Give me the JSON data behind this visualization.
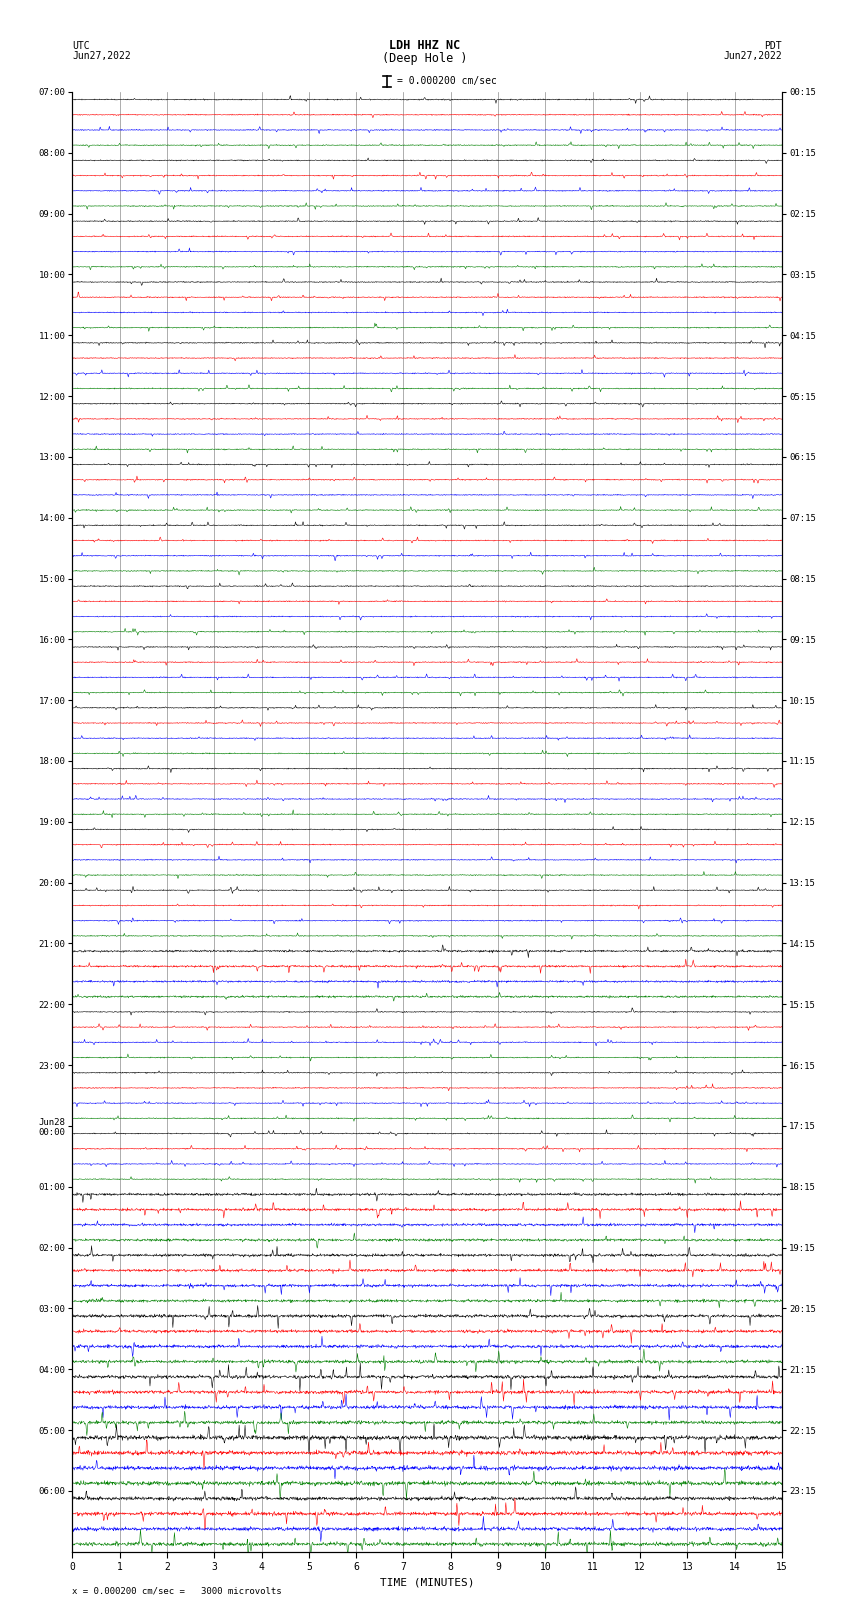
{
  "title_line1": "LDH HHZ NC",
  "title_line2": "(Deep Hole )",
  "scale_text": "= 0.000200 cm/sec",
  "bottom_scale_text": "= 0.000200 cm/sec =   3000 microvolts",
  "left_label": "UTC\nJun27,2022",
  "right_label": "PDT\nJun27,2022",
  "xlabel": "TIME (MINUTES)",
  "left_times": [
    "07:00",
    "08:00",
    "09:00",
    "10:00",
    "11:00",
    "12:00",
    "13:00",
    "14:00",
    "15:00",
    "16:00",
    "17:00",
    "18:00",
    "19:00",
    "20:00",
    "21:00",
    "22:00",
    "23:00",
    "Jun28\n00:00",
    "01:00",
    "02:00",
    "03:00",
    "04:00",
    "05:00",
    "06:00"
  ],
  "right_times": [
    "00:15",
    "01:15",
    "02:15",
    "03:15",
    "04:15",
    "05:15",
    "06:15",
    "07:15",
    "08:15",
    "09:15",
    "10:15",
    "11:15",
    "12:15",
    "13:15",
    "14:15",
    "15:15",
    "16:15",
    "17:15",
    "18:15",
    "19:15",
    "20:15",
    "21:15",
    "22:15",
    "23:15"
  ],
  "n_rows": 24,
  "traces_per_row": 4,
  "colors": [
    "black",
    "red",
    "blue",
    "green"
  ],
  "fig_width": 8.5,
  "fig_height": 16.13,
  "dpi": 100,
  "background_color": "white",
  "grid_color": "#808080",
  "grid_linewidth": 0.5,
  "trace_linewidth": 0.4,
  "xmin": 0,
  "xmax": 15,
  "xticks": [
    0,
    1,
    2,
    3,
    4,
    5,
    6,
    7,
    8,
    9,
    10,
    11,
    12,
    13,
    14,
    15
  ],
  "base_amp": 0.08,
  "spike_amp": 0.18,
  "high_amp_rows": [
    14,
    18,
    19,
    20,
    21,
    22,
    23
  ],
  "high_amp_values": [
    0.16,
    0.2,
    0.22,
    0.25,
    0.28,
    0.35,
    0.3
  ]
}
